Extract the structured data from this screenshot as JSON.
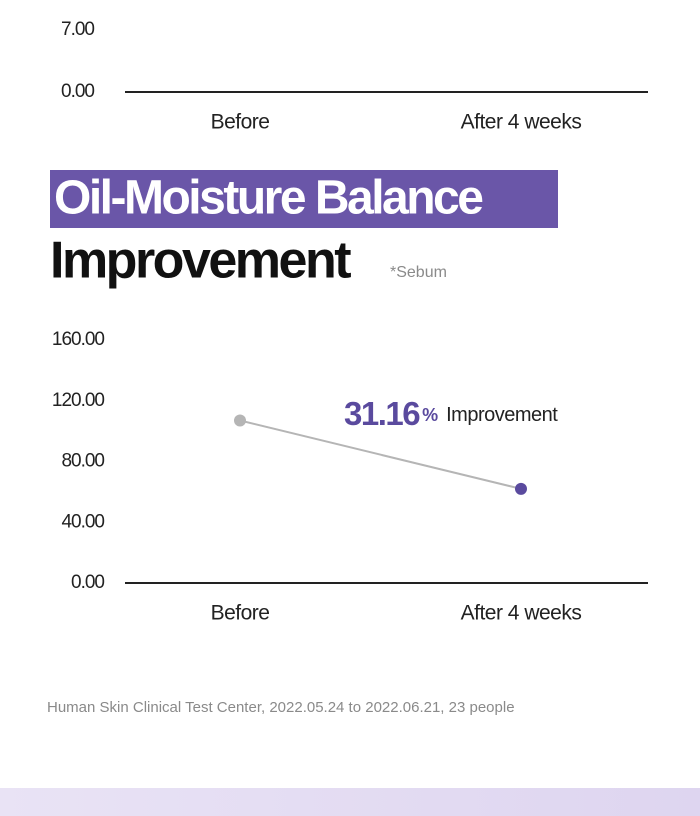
{
  "chart_data": [
    {
      "type": "line",
      "categories": [
        "Before",
        "After 4 weeks"
      ],
      "ylim": [
        0,
        7
      ],
      "yticks": [
        {
          "value": 0,
          "label": "0.00"
        },
        {
          "value": 7,
          "label": "7.00"
        }
      ]
    },
    {
      "type": "line",
      "title": "Oil-Moisture Balance",
      "subtitle": "Improvement",
      "note": "*Sebum",
      "categories": [
        "Before",
        "After 4 weeks"
      ],
      "series": [
        {
          "color": "#b5b5b5",
          "point_colors": [
            "#b5b5b5",
            "#5a4a9e"
          ],
          "values": [
            107,
            62
          ]
        }
      ],
      "ylim": [
        0,
        160
      ],
      "yticks": [
        {
          "value": 0,
          "label": "0.00"
        },
        {
          "value": 40,
          "label": "40.00"
        },
        {
          "value": 80,
          "label": "80.00"
        },
        {
          "value": 120,
          "label": "120.00"
        },
        {
          "value": 160,
          "label": "160.00"
        }
      ],
      "annotation_value": "31.16",
      "annotation_unit": "%",
      "annotation_text": "Improvement"
    }
  ],
  "source": "Human Skin Clinical Test Center, 2022.05.24 to 2022.06.21, 23 people"
}
